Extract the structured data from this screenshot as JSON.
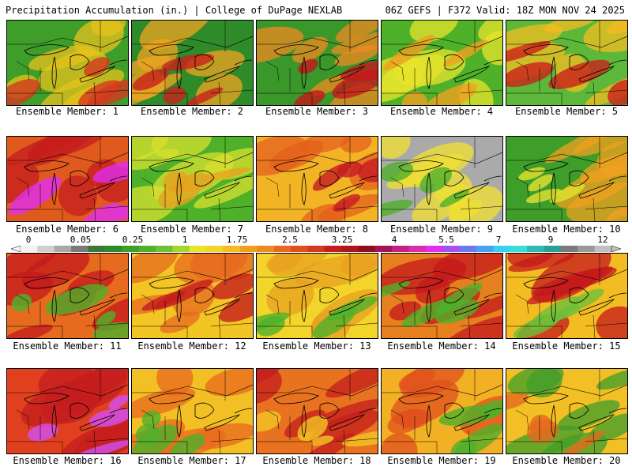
{
  "header": {
    "left_title": "Precipitation Accumulation (in.) | College of DuPage NEXLAB",
    "right_title": "06Z GEFS | F372 Valid: 18Z MON NOV 24 2025"
  },
  "panels": [
    {
      "label": "Ensemble Member: 1",
      "colors": [
        "#3f9d2a",
        "#e8c21c",
        "#d33a1e"
      ]
    },
    {
      "label": "Ensemble Member: 2",
      "colors": [
        "#2f8a2a",
        "#f2a321",
        "#c9201c"
      ]
    },
    {
      "label": "Ensemble Member: 3",
      "colors": [
        "#3a972a",
        "#f08a22",
        "#c4181c"
      ]
    },
    {
      "label": "Ensemble Member: 4",
      "colors": [
        "#4fb02a",
        "#e7e42c",
        "#f0a020"
      ]
    },
    {
      "label": "Ensemble Member: 5",
      "colors": [
        "#5db83a",
        "#f3bc22",
        "#cc201b"
      ]
    },
    {
      "label": "Ensemble Member: 6",
      "colors": [
        "#e05a1e",
        "#c41d1d",
        "#e12ef0"
      ]
    },
    {
      "label": "Ensemble Member: 7",
      "colors": [
        "#4fb02a",
        "#d8e030",
        "#e6a21f"
      ]
    },
    {
      "label": "Ensemble Member: 8",
      "colors": [
        "#f2b424",
        "#e4601d",
        "#c61c22"
      ]
    },
    {
      "label": "Ensemble Member: 9",
      "colors": [
        "#aaaaaa",
        "#f0e030",
        "#4fb02a"
      ]
    },
    {
      "label": "Ensemble Member: 10",
      "colors": [
        "#3f9d2a",
        "#f0a020",
        "#e2e232"
      ]
    },
    {
      "label": "Ensemble Member: 11",
      "colors": [
        "#e66b1e",
        "#c4181c",
        "#4fb02a"
      ]
    },
    {
      "label": "Ensemble Member: 12",
      "colors": [
        "#f2c525",
        "#e76a20",
        "#c41d1d"
      ]
    },
    {
      "label": "Ensemble Member: 13",
      "colors": [
        "#f2d42a",
        "#e8a020",
        "#4fb02a"
      ]
    },
    {
      "label": "Ensemble Member: 14",
      "colors": [
        "#e6801f",
        "#c4181c",
        "#4fb02a"
      ]
    },
    {
      "label": "Ensemble Member: 15",
      "colors": [
        "#f2bc22",
        "#c4181c",
        "#6ebf3a"
      ]
    },
    {
      "label": "Ensemble Member: 16",
      "colors": [
        "#e0401e",
        "#c41d1d",
        "#d24ff2"
      ]
    },
    {
      "label": "Ensemble Member: 17",
      "colors": [
        "#f2c024",
        "#e86a1e",
        "#4fb02a"
      ]
    },
    {
      "label": "Ensemble Member: 18",
      "colors": [
        "#e8721f",
        "#c41d1d",
        "#f2c524"
      ]
    },
    {
      "label": "Ensemble Member: 19",
      "colors": [
        "#f2b024",
        "#e0501e",
        "#4fb02a"
      ]
    },
    {
      "label": "Ensemble Member: 20",
      "colors": [
        "#f2c024",
        "#3f9d2a",
        "#e46a1e"
      ]
    }
  ],
  "colorbar": {
    "ticks": [
      "0",
      "0.05",
      "0.25",
      "1",
      "1.75",
      "2.5",
      "3.25",
      "4",
      "5.5",
      "7",
      "9",
      "12"
    ],
    "colors": [
      "#f2f2f2",
      "#cfcfcf",
      "#a8a8a8",
      "#7a7a7a",
      "#3a7a36",
      "#2f8a2a",
      "#3f9d2a",
      "#4fb02a",
      "#6ebf3a",
      "#a7d42e",
      "#e7e42c",
      "#f2d42a",
      "#f2bc22",
      "#f0a020",
      "#ef8a22",
      "#e86a1e",
      "#e0501e",
      "#d33a1e",
      "#c41d1d",
      "#b0141c",
      "#8c101a",
      "#a0165a",
      "#c02480",
      "#d82ea8",
      "#e12ef0",
      "#a64ff2",
      "#6c78f0",
      "#4aa0f2",
      "#38d0f2",
      "#3adcdc",
      "#2fbab0",
      "#2aa090",
      "#7a7a7a",
      "#999999",
      "#bfbfbf"
    ]
  }
}
